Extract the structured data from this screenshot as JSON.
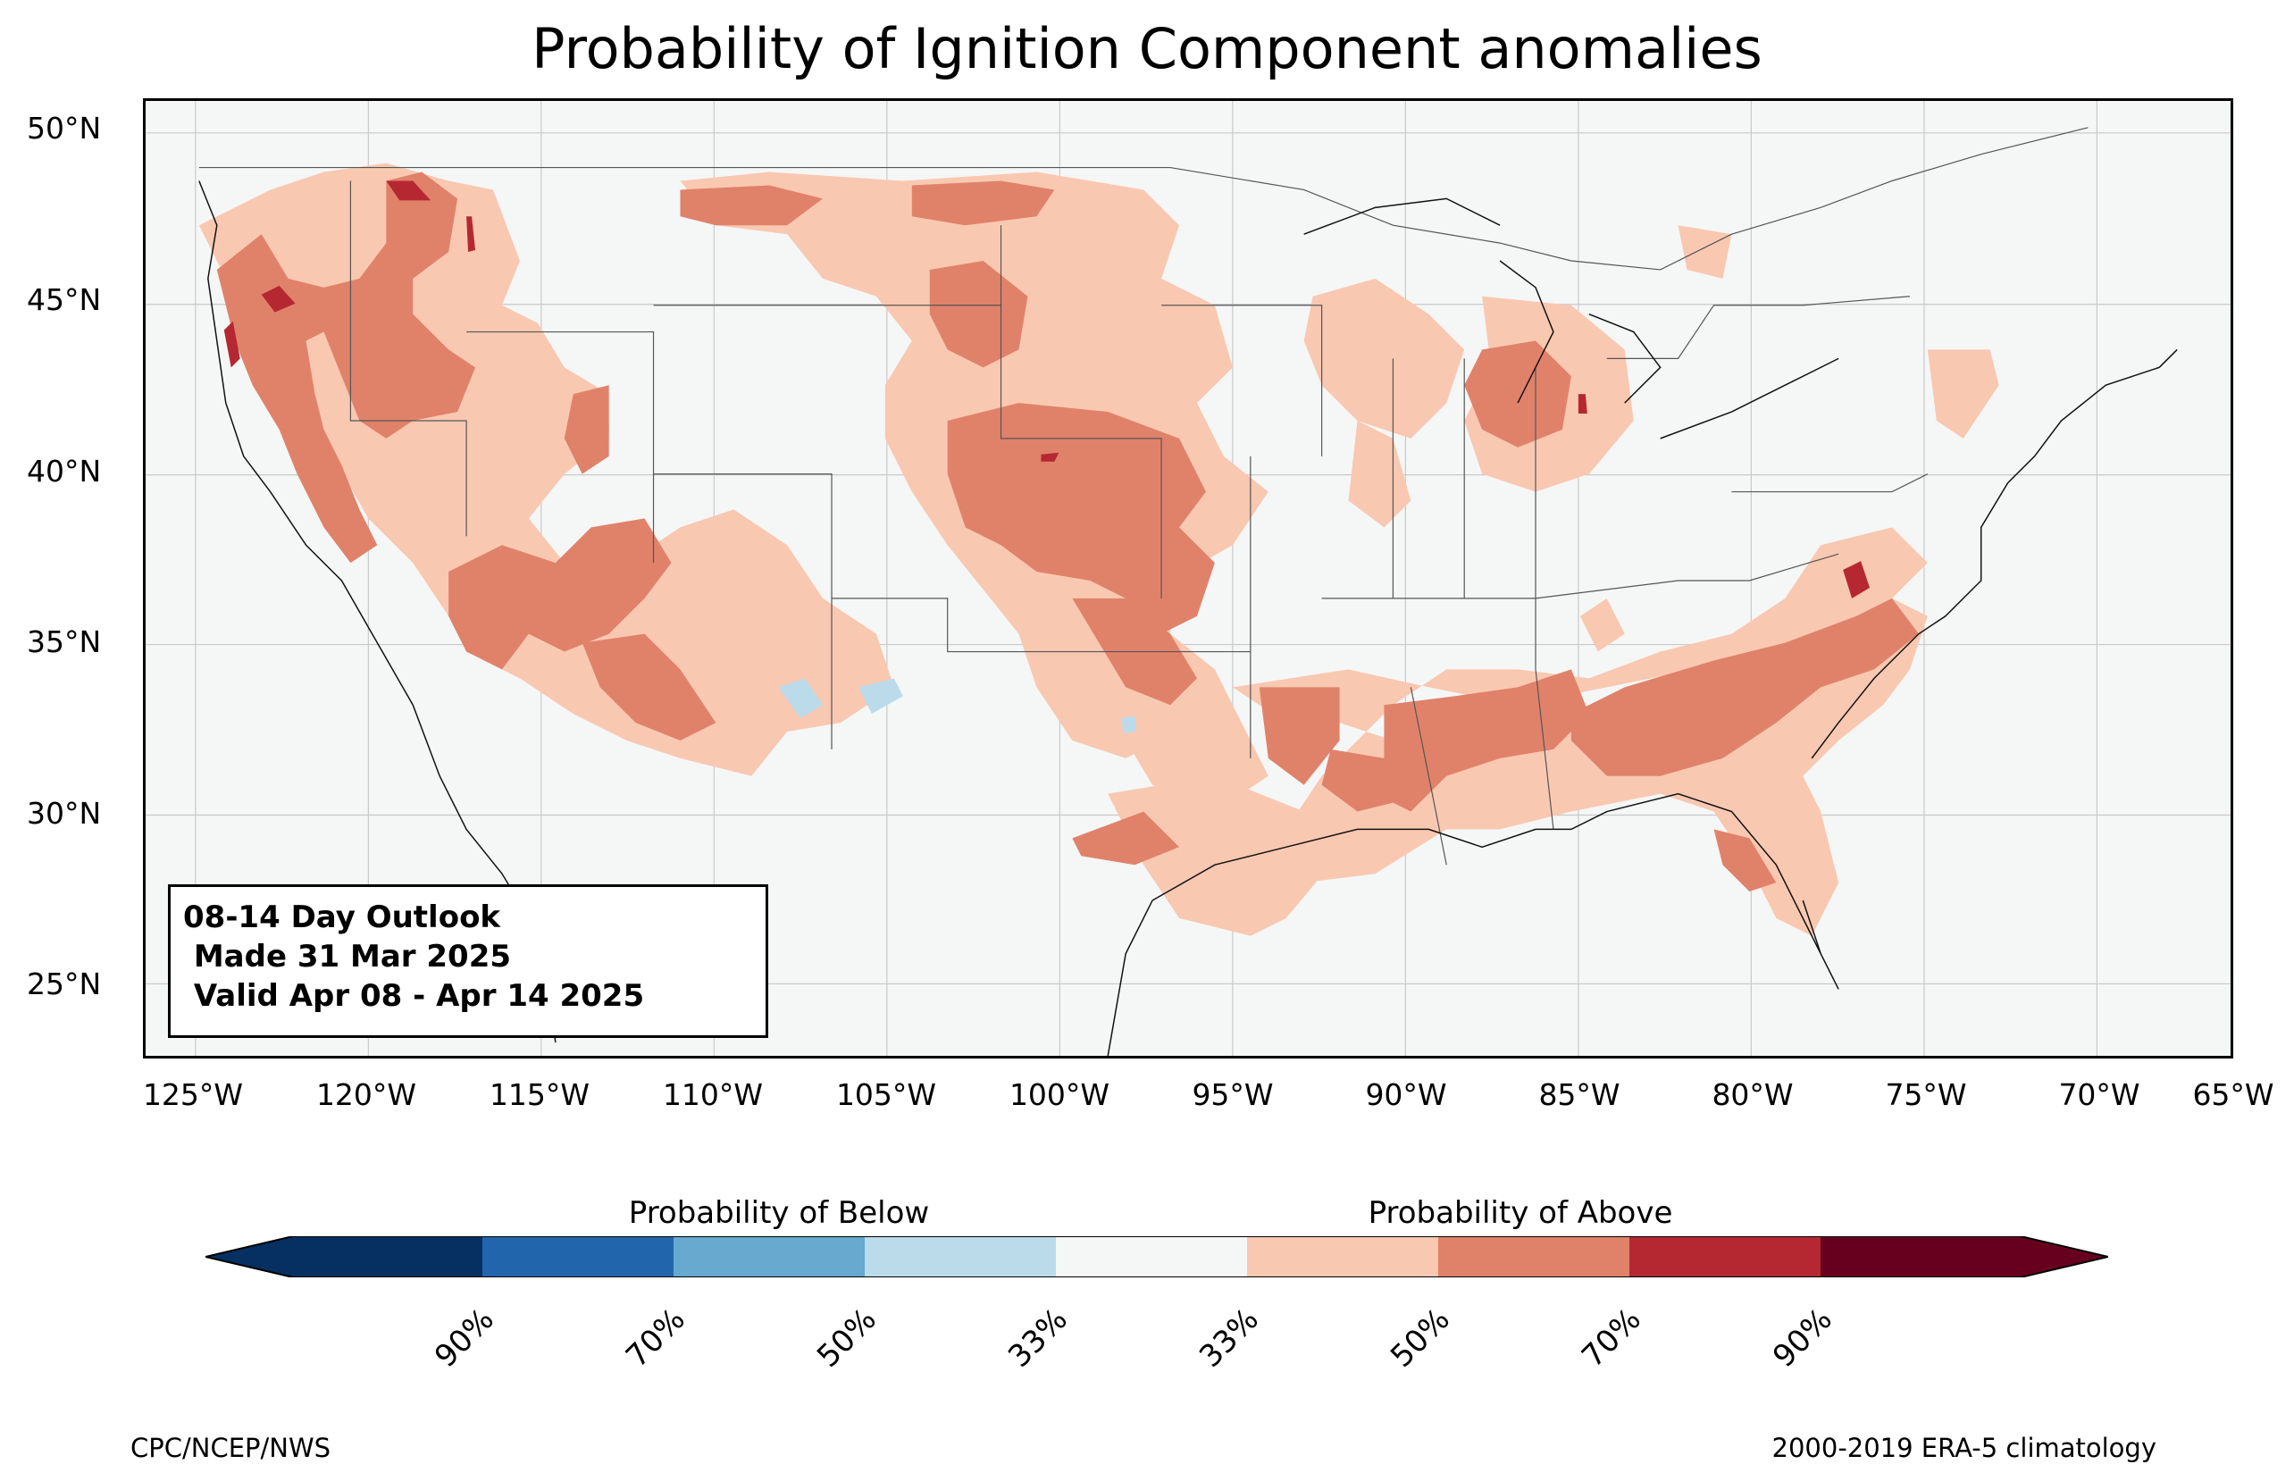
{
  "title": "Probability of Ignition Component anomalies",
  "latitude_labels": [
    "50°N",
    "45°N",
    "40°N",
    "35°N",
    "30°N",
    "25°N"
  ],
  "longitude_labels": [
    "125°W",
    "120°W",
    "115°W",
    "110°W",
    "105°W",
    "100°W",
    "95°W",
    "90°W",
    "85°W",
    "80°W",
    "75°W",
    "70°W",
    "65°W"
  ],
  "outlook": {
    "line1": "08-14 Day Outlook",
    "line2": " Made 31 Mar 2025",
    "line3": " Valid Apr 08 - Apr 14 2025"
  },
  "colorbar": {
    "below_label": "Probability of Below",
    "above_label": "Probability of Above",
    "tick_labels": [
      "90%",
      "70%",
      "50%",
      "33%",
      "33%",
      "50%",
      "70%",
      "90%"
    ],
    "colors": {
      "below_extreme": "#053061",
      "below_90": "#2166ac",
      "below_70": "#67a9cf",
      "below_50": "#bcdbea",
      "neutral": "#f5f6f6",
      "above_33": "#f9c8b1",
      "above_50": "#e0826a",
      "above_70": "#b52832",
      "above_extreme": "#67001f"
    }
  },
  "footer": {
    "left": "CPC/NCEP/NWS",
    "right": "2000-2019 ERA-5 climatology"
  }
}
